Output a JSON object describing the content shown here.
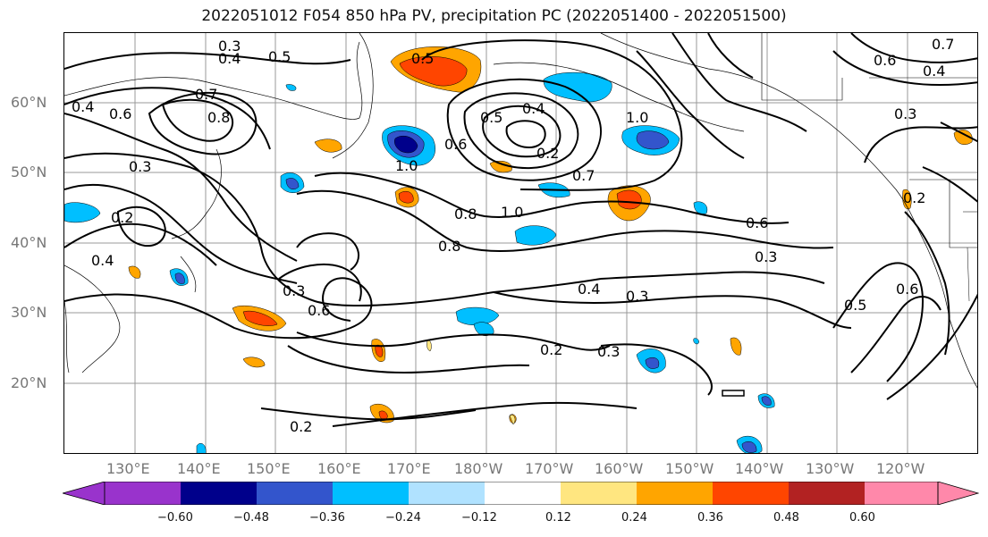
{
  "title": "2022051012 F054 850 hPa PV, precipitation PC (2022051400 - 2022051500)",
  "lat_labels": [
    "60°N",
    "50°N",
    "40°N",
    "30°N",
    "20°N"
  ],
  "lon_labels": [
    "130°E",
    "140°E",
    "150°E",
    "160°E",
    "170°E",
    "180°W",
    "170°W",
    "160°W",
    "150°W",
    "140°W",
    "130°W",
    "120°W"
  ],
  "contour_labels": [
    "0.3",
    "0.4",
    "0.5",
    "0.4",
    "0.7",
    "0.6",
    "0.8",
    "0.3",
    "0.2",
    "0.4",
    "0.5",
    "0.5",
    "0.4",
    "0.6",
    "0.2",
    "1.0",
    "1.0",
    "0.7",
    "0.8",
    "1.0",
    "0.8",
    "0.6",
    "0.3",
    "0.4",
    "0.3",
    "0.3",
    "0.6",
    "0.2",
    "0.3",
    "0.2",
    "0.5",
    "0.6",
    "0.3",
    "0.7",
    "0.6",
    "0.4",
    "0.2"
  ],
  "colorbar": {
    "ticks": [
      "−0.60",
      "−0.48",
      "−0.36",
      "−0.24",
      "−0.12",
      "0.12",
      "0.24",
      "0.36",
      "0.48",
      "0.60"
    ],
    "colors": [
      "#9933cc",
      "#00008b",
      "#3355cc",
      "#00bfff",
      "#b0e2ff",
      "#ffffff",
      "#ffe680",
      "#ffa500",
      "#ff4500",
      "#b22222",
      "#ff88aa"
    ]
  },
  "colors": {
    "grid": "#888888",
    "contour": "#000000",
    "coast": "#000000",
    "tick_label": "#777777"
  }
}
